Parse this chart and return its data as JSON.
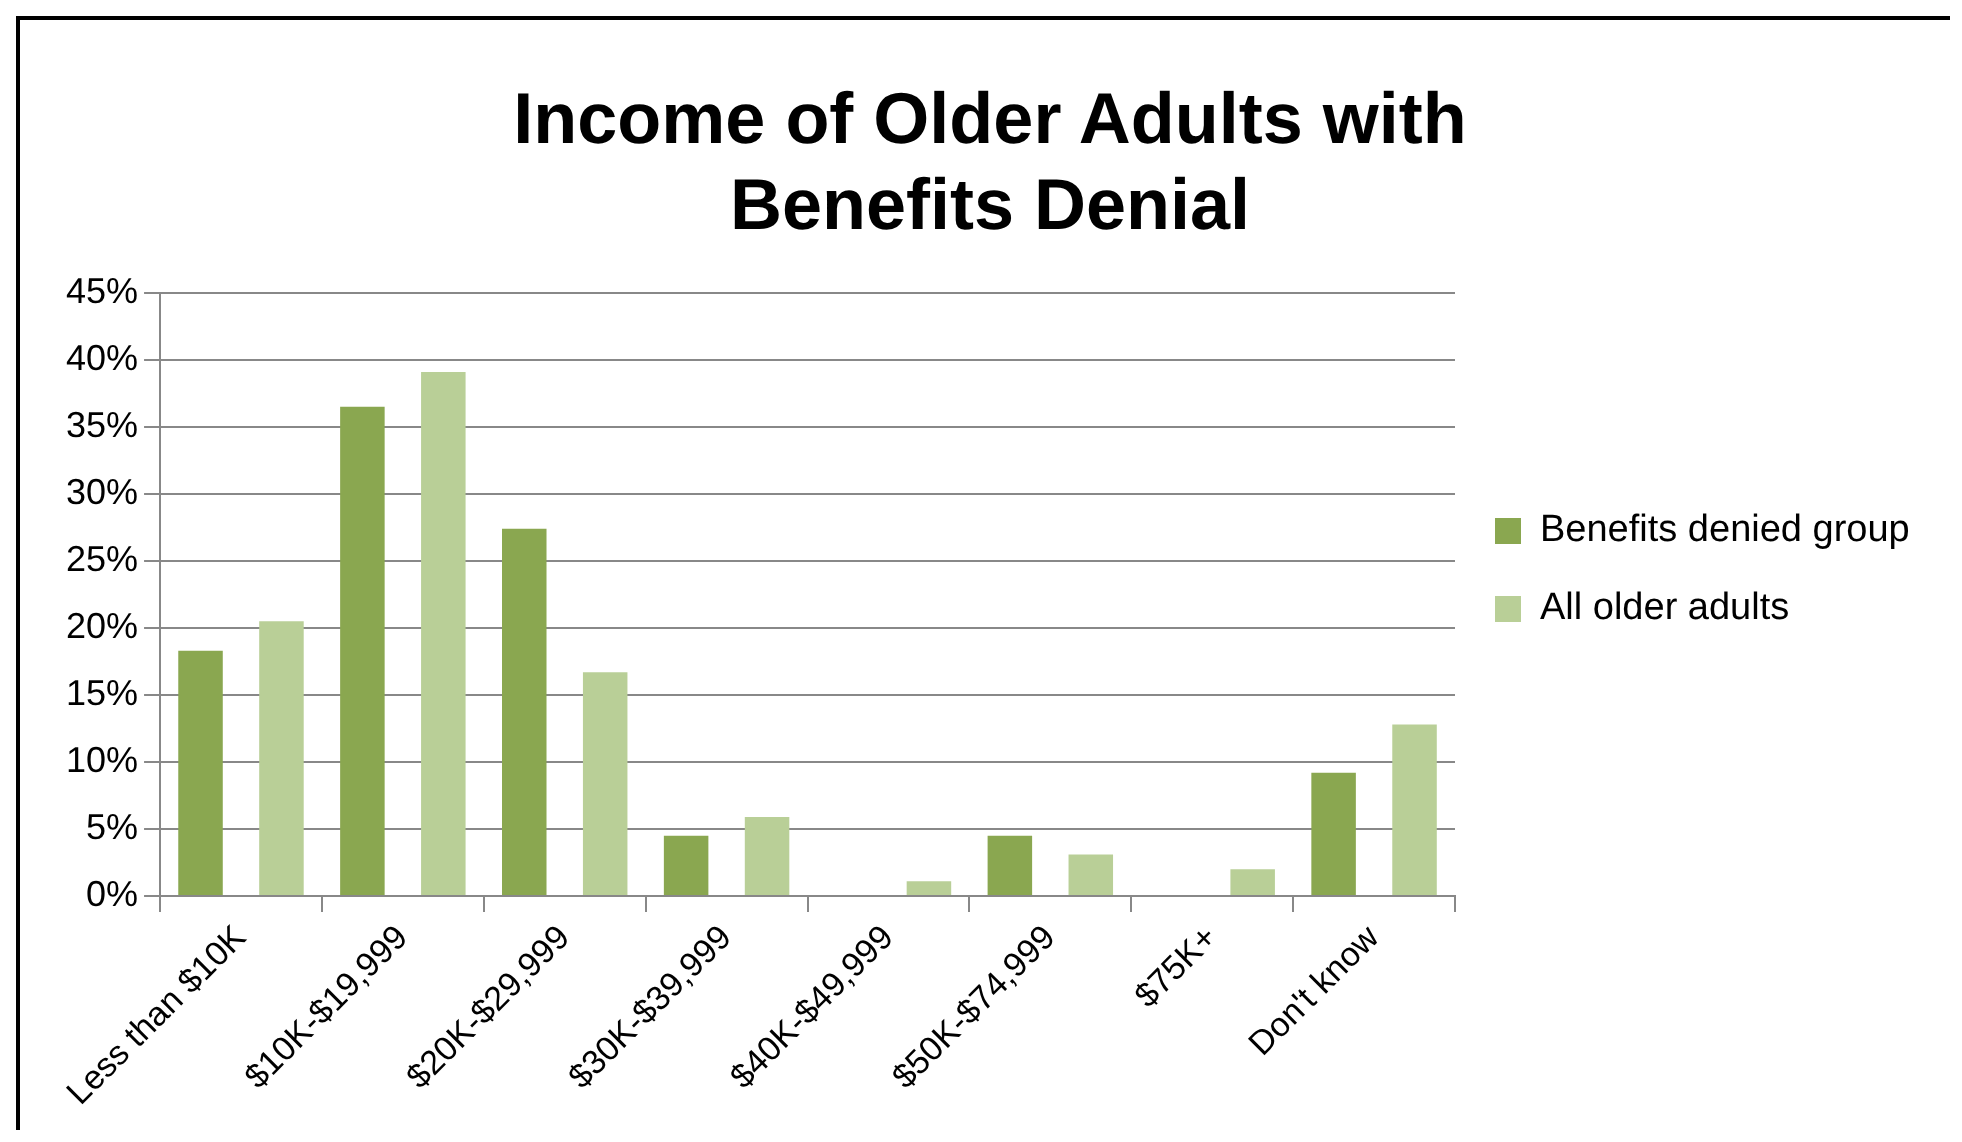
{
  "chart_data": {
    "type": "bar",
    "title": "Income of Older Adults with Benefits Denial",
    "categories": [
      "Less than $10K",
      "$10K-$19,999",
      "$20K-$29,999",
      "$30K-$39,999",
      "$40K-$49,999",
      "$50K-$74,999",
      "$75K+",
      "Don't know"
    ],
    "series": [
      {
        "name": "Benefits denied group",
        "color": "#8aa750",
        "values": [
          18.3,
          36.5,
          27.4,
          4.5,
          0,
          4.5,
          0,
          9.2
        ]
      },
      {
        "name": "All older adults",
        "color": "#b9cf97",
        "values": [
          20.5,
          39.1,
          16.7,
          5.9,
          1.1,
          3.1,
          2.0,
          12.8
        ]
      }
    ],
    "ylim": [
      0,
      45
    ],
    "yticks": [
      {
        "value": 0,
        "label": "0%"
      },
      {
        "value": 5,
        "label": "5%"
      },
      {
        "value": 10,
        "label": "10%"
      },
      {
        "value": 15,
        "label": "15%"
      },
      {
        "value": 20,
        "label": "20%"
      },
      {
        "value": 25,
        "label": "25%"
      },
      {
        "value": 30,
        "label": "30%"
      },
      {
        "value": 35,
        "label": "35%"
      },
      {
        "value": 40,
        "label": "40%"
      },
      {
        "value": 45,
        "label": "45%"
      }
    ],
    "grid": "y",
    "legend": "right"
  }
}
